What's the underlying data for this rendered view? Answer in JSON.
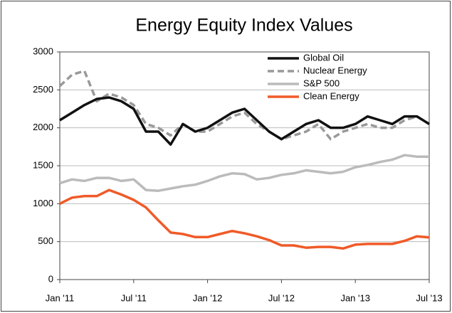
{
  "chart_data": {
    "type": "line",
    "title": "Energy Equity Index Values",
    "x": [
      0,
      1,
      2,
      3,
      4,
      5,
      6,
      7,
      8,
      9,
      10,
      11,
      12,
      13,
      14,
      15,
      16,
      17,
      18,
      19,
      20,
      21,
      22,
      23,
      24,
      25,
      26,
      27,
      28,
      29,
      30
    ],
    "xlim": [
      0,
      30
    ],
    "xticks": [
      {
        "value": 0,
        "label": "Jan '11"
      },
      {
        "value": 6,
        "label": "Jul '11"
      },
      {
        "value": 12,
        "label": "Jan '12"
      },
      {
        "value": 18,
        "label": "Jul '12"
      },
      {
        "value": 24,
        "label": "Jan '13"
      },
      {
        "value": 30,
        "label": "Jul '13"
      }
    ],
    "ylim": [
      0,
      3000
    ],
    "yticks": [
      0,
      500,
      1000,
      1500,
      2000,
      2500,
      3000
    ],
    "grid": true,
    "legend": "top-right",
    "series": [
      {
        "name": "Global Oil",
        "color": "#111111",
        "dash": false,
        "values": [
          2100,
          2200,
          2300,
          2380,
          2400,
          2350,
          2250,
          1950,
          1950,
          1780,
          2050,
          1950,
          2000,
          2100,
          2200,
          2250,
          2100,
          1950,
          1850,
          1950,
          2050,
          2100,
          2000,
          2000,
          2050,
          2150,
          2100,
          2050,
          2150,
          2150,
          2050
        ]
      },
      {
        "name": "Nuclear Energy",
        "color": "#999999",
        "dash": true,
        "values": [
          2550,
          2700,
          2750,
          2350,
          2450,
          2400,
          2300,
          2050,
          2000,
          1900,
          2050,
          1950,
          1950,
          2050,
          2150,
          2200,
          2050,
          1950,
          1850,
          1900,
          1950,
          2050,
          1850,
          1950,
          2000,
          2050,
          2000,
          2000,
          2100,
          2150,
          2050
        ]
      },
      {
        "name": "S&P 500",
        "color": "#bbbbbb",
        "dash": false,
        "values": [
          1270,
          1320,
          1300,
          1340,
          1340,
          1300,
          1320,
          1180,
          1170,
          1200,
          1230,
          1250,
          1300,
          1360,
          1400,
          1390,
          1320,
          1340,
          1380,
          1400,
          1440,
          1420,
          1400,
          1420,
          1480,
          1510,
          1550,
          1580,
          1640,
          1620,
          1620
        ]
      },
      {
        "name": "Clean Energy",
        "color": "#f05a28",
        "dash": false,
        "values": [
          1000,
          1080,
          1100,
          1100,
          1180,
          1120,
          1050,
          950,
          780,
          620,
          600,
          560,
          560,
          600,
          640,
          610,
          570,
          520,
          450,
          450,
          420,
          430,
          430,
          410,
          460,
          470,
          470,
          470,
          510,
          570,
          555
        ]
      }
    ]
  }
}
